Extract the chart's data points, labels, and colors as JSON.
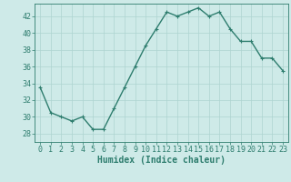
{
  "x": [
    0,
    1,
    2,
    3,
    4,
    5,
    6,
    7,
    8,
    9,
    10,
    11,
    12,
    13,
    14,
    15,
    16,
    17,
    18,
    19,
    20,
    21,
    22,
    23
  ],
  "y": [
    33.5,
    30.5,
    30.0,
    29.5,
    30.0,
    28.5,
    28.5,
    31.0,
    33.5,
    36.0,
    38.5,
    40.5,
    42.5,
    42.0,
    42.5,
    43.0,
    42.0,
    42.5,
    40.5,
    39.0,
    39.0,
    37.0,
    37.0,
    35.5
  ],
  "line_color": "#2e7d6e",
  "marker": "+",
  "marker_size": 3,
  "bg_color": "#ceeae8",
  "grid_color": "#aed4d1",
  "xlabel": "Humidex (Indice chaleur)",
  "xlim": [
    -0.5,
    23.5
  ],
  "ylim": [
    27.0,
    43.5
  ],
  "xticks": [
    0,
    1,
    2,
    3,
    4,
    5,
    6,
    7,
    8,
    9,
    10,
    11,
    12,
    13,
    14,
    15,
    16,
    17,
    18,
    19,
    20,
    21,
    22,
    23
  ],
  "yticks": [
    28,
    30,
    32,
    34,
    36,
    38,
    40,
    42
  ],
  "tick_color": "#2e7d6e",
  "label_fontsize": 7,
  "tick_fontsize": 6,
  "line_width": 1.0
}
